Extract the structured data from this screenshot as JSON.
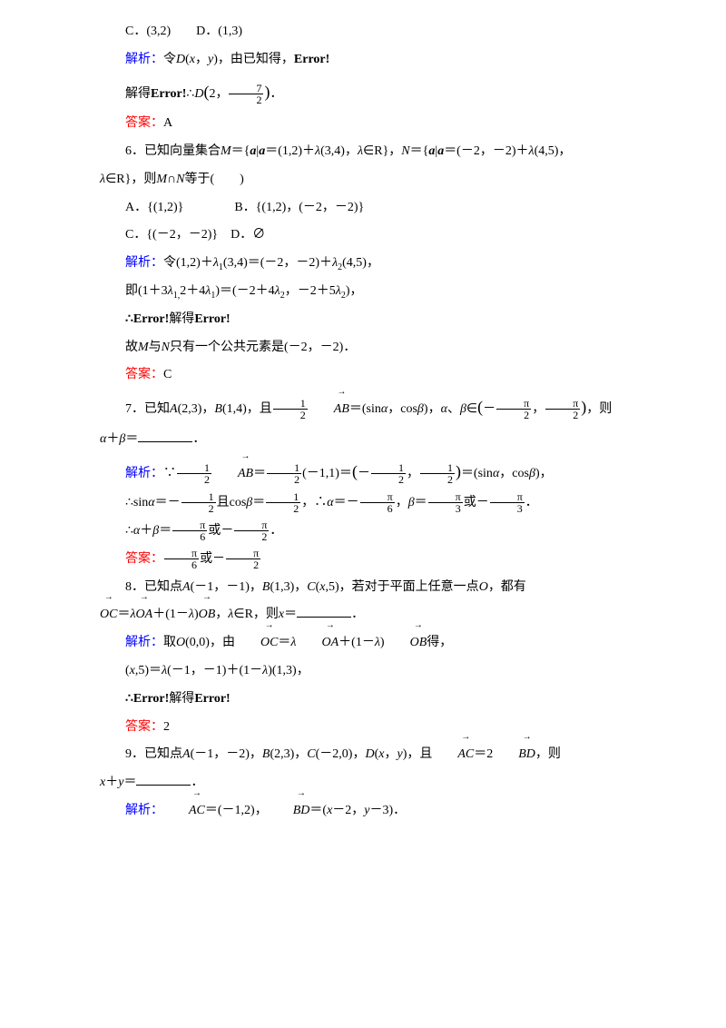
{
  "doc": {
    "text_color": "#000000",
    "blue": "#0000ff",
    "red": "#ff0000",
    "bg": "#ffffff",
    "fontsize": 14
  },
  "l1": "C．(3,2)　　D．(1,3)",
  "l2a": "解析：",
  "l2b": "令",
  "l2c": "D",
  "l2d": "(",
  "l2e": "x",
  "l2f": "，",
  "l2g": "y",
  "l2h": ")，由已知得，",
  "l2err": "Error!",
  "l3a": "解得",
  "l3err": "Error!",
  "l3b": "∴",
  "l3c": "D",
  "l3d": "2，",
  "l3e": "7",
  "l3f": "2",
  "l4a": "答案：",
  "l4b": "A",
  "l5a": "6．已知向量集合",
  "l5M": "M",
  "l5b": "＝{",
  "l5a1": "a",
  "l5c": "|",
  "l5a2": "a",
  "l5d": "＝(1,2)＋",
  "l5lam": "λ",
  "l5e": "(3,4)，",
  "l5lam2": "λ",
  "l5f": "∈R}，",
  "l5N": "N",
  "l5g": "＝{",
  "l5a3": "a",
  "l5h": "|",
  "l5a4": "a",
  "l5i": "＝(－2，－2)＋",
  "l5lam3": "λ",
  "l5j": "(4,5)，",
  "l6a": "λ",
  "l6b": "∈R}，则",
  "l6M": "M",
  "l6c": "∩",
  "l6N": "N",
  "l6d": "等于(　　)",
  "l7": "A．{(1,2)}　　　　B．{(1,2)，(－2，－2)}",
  "l8": "C．{(－2，－2)}　D．∅",
  "l9a": "解析：",
  "l9b": "令(1,2)＋",
  "l9lam1": "λ",
  "l9s1": "1",
  "l9c": "(3,4)＝(－2，－2)＋",
  "l9lam2": "λ",
  "l9s2": "2",
  "l9d": "(4,5)，",
  "l10a": "即(1＋3",
  "l10lam1": "λ",
  "l10s1a": "1,",
  "l10b": "2＋4",
  "l10lam2": "λ",
  "l10s1b": "1",
  "l10c": ")＝(－2＋4",
  "l10lam3": "λ",
  "l10s2a": "2",
  "l10d": "，－2＋5",
  "l10lam4": "λ",
  "l10s2b": "2",
  "l10e": ")，",
  "l11a": "∴",
  "l11err1": "Error!",
  "l11b": "解得",
  "l11err2": "Error!",
  "l12a": "故",
  "l12M": "M",
  "l12b": "与",
  "l12N": "N",
  "l12c": "只有一个公共元素是(－2，－2)．",
  "l13a": "答案：",
  "l13b": "C",
  "l14a": "7．已知",
  "l14A": "A",
  "l14b": "(2,3)，",
  "l14B": "B",
  "l14c": "(1,4)，且",
  "l14num": "1",
  "l14den": "2",
  "l14AB": "AB",
  "l14d": "＝(sin",
  "l14al": "α",
  "l14e": "，cos",
  "l14be": "β",
  "l14f": ")，",
  "l14al2": "α",
  "l14g": "、",
  "l14be2": "β",
  "l14h": "∈",
  "l14pleft": "－",
  "l14pi1n": "π",
  "l14pi1d": "2",
  "l14comma": "，",
  "l14pi2n": "π",
  "l14pi2d": "2",
  "l14i": "，则",
  "l15a": "α",
  "l15b": "＋",
  "l15c": "β",
  "l15d": "＝",
  "l15e": "．",
  "l16a": "解析：",
  "l16b": "∵",
  "l16num": "1",
  "l16den": "2",
  "l16AB": "AB",
  "l16c": "＝",
  "l16num2": "1",
  "l16den2": "2",
  "l16d": "(－1,1)＝",
  "l16pleft": "－",
  "l16f1n": "1",
  "l16f1d": "2",
  "l16comma": "，",
  "l16f2n": "1",
  "l16f2d": "2",
  "l16e": "＝(sin",
  "l16al": "α",
  "l16f": "，cos",
  "l16be": "β",
  "l16g": ")，",
  "l17a": "∴sin",
  "l17al": "α",
  "l17b": "＝－",
  "l17f1n": "1",
  "l17f1d": "2",
  "l17c": "且cos",
  "l17be": "β",
  "l17d": "＝",
  "l17f2n": "1",
  "l17f2d": "2",
  "l17e": "，∴",
  "l17al2": "α",
  "l17f": "＝－",
  "l17f3n": "π",
  "l17f3d": "6",
  "l17g": "，",
  "l17be2": "β",
  "l17h": "＝",
  "l17f4n": "π",
  "l17f4d": "3",
  "l17i": "或－",
  "l17f5n": "π",
  "l17f5d": "3",
  "l17j": "．",
  "l18a": "∴",
  "l18al": "α",
  "l18b": "＋",
  "l18be": "β",
  "l18c": "＝",
  "l18f1n": "π",
  "l18f1d": "6",
  "l18d": "或－",
  "l18f2n": "π",
  "l18f2d": "2",
  "l18e": "．",
  "l19a": "答案：",
  "l19f1n": "π",
  "l19f1d": "6",
  "l19b": "或－",
  "l19f2n": "π",
  "l19f2d": "2",
  "l20a": "8．已知点",
  "l20A": "A",
  "l20b": "(－1，－1)，",
  "l20B": "B",
  "l20c": "(1,3)，",
  "l20C": "C",
  "l20d": "(",
  "l20x": "x",
  "l20e": ",5)，若对于平面上任意一点",
  "l20O": "O",
  "l20f": "，都有",
  "l21OC": "OC",
  "l21a": "＝",
  "l21lam": "λ",
  "l21OA": "OA",
  "l21b": "＋(1－",
  "l21lam2": "λ",
  "l21c": ")",
  "l21OB": "OB",
  "l21d": "，",
  "l21lam3": "λ",
  "l21e": "∈R，则",
  "l21x": "x",
  "l21f": "＝",
  "l21g": "．",
  "l22a": "解析：",
  "l22b": "取",
  "l22O": "O",
  "l22c": "(0,0)，由",
  "l22OC": "OC",
  "l22d": "＝",
  "l22lam": "λ",
  "l22OA": "OA",
  "l22e": "＋(1－",
  "l22lam2": "λ",
  "l22f": ")",
  "l22OB": "OB",
  "l22g": "得，",
  "l23a": "(",
  "l23x": "x",
  "l23b": ",5)＝",
  "l23lam": "λ",
  "l23c": "(－1，－1)＋(1－",
  "l23lam2": "λ",
  "l23d": ")(1,3)，",
  "l24a": "∴",
  "l24err1": "Error!",
  "l24b": "解得",
  "l24err2": "Error!",
  "l25a": "答案：",
  "l25b": "2",
  "l26a": "9．已知点",
  "l26A": "A",
  "l26b": "(－1，－2)，",
  "l26B": "B",
  "l26c": "(2,3)，",
  "l26C": "C",
  "l26d": "(－2,0)，",
  "l26D": "D",
  "l26e": "(",
  "l26x": "x",
  "l26f": "，",
  "l26y": "y",
  "l26g": ")，且",
  "l26AC": "AC",
  "l26h": "＝2",
  "l26BD": "BD",
  "l26i": "，则",
  "l27x": "x",
  "l27a": "＋",
  "l27y": "y",
  "l27b": "＝",
  "l27c": "．",
  "l28a": "解析：",
  "l28AC": "AC",
  "l28b": "＝(－1,2)，",
  "l28BD": "BD",
  "l28c": "＝(",
  "l28x": "x",
  "l28d": "－2，",
  "l28y": "y",
  "l28e": "－3)．"
}
